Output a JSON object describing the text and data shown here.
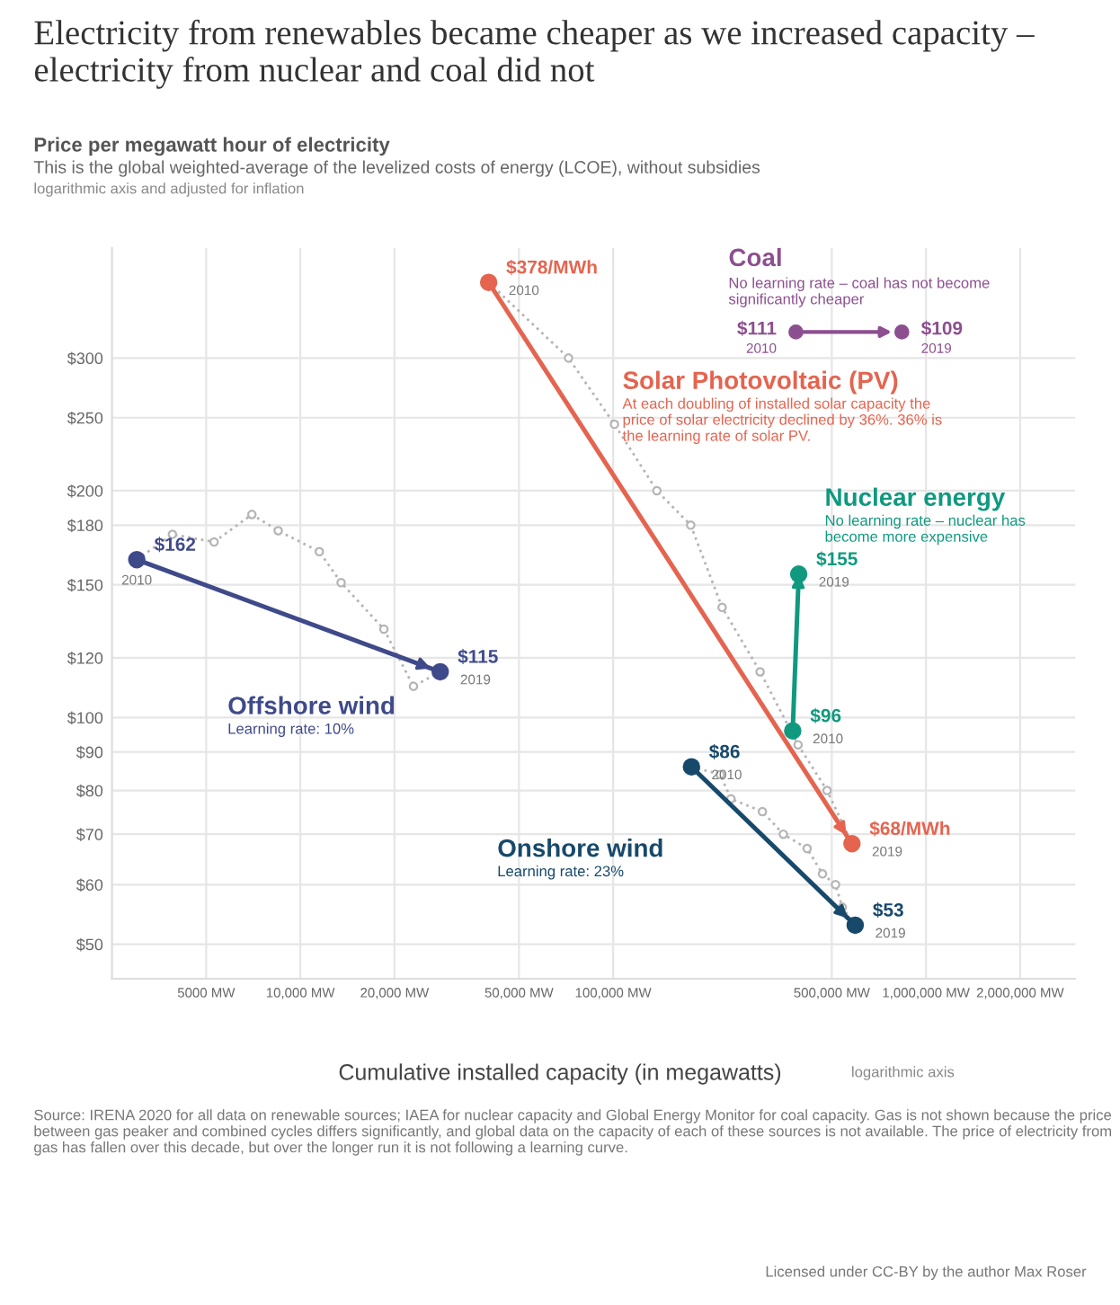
{
  "chart_data": {
    "type": "line",
    "title": "Electricity from renewables became cheaper as we increased capacity – electricity from nuclear and coal did not",
    "subtitle": "This is the global weighted-average of the levelized costs of energy (LCOE), without subsidies",
    "ylabel": "Price per megawatt hour of electricity",
    "xlabel": "Cumulative installed capacity (in megawatts)",
    "log": "xy",
    "grid": true,
    "xlim": [
      2500,
      3000000
    ],
    "ylim": [
      45,
      420
    ],
    "xticks": [
      {
        "value": 5000,
        "label": "5000 MW"
      },
      {
        "value": 10000,
        "label": "10,000 MW"
      },
      {
        "value": 20000,
        "label": "20,000 MW"
      },
      {
        "value": 50000,
        "label": "50,000 MW"
      },
      {
        "value": 100000,
        "label": "100,000 MW"
      },
      {
        "value": 500000,
        "label": "500,000 MW"
      },
      {
        "value": 1000000,
        "label": "1,000,000 MW"
      },
      {
        "value": 2000000,
        "label": "2,000,000 MW"
      }
    ],
    "yticks": [
      {
        "value": 50,
        "label": "$50"
      },
      {
        "value": 60,
        "label": "$60"
      },
      {
        "value": 70,
        "label": "$70"
      },
      {
        "value": 80,
        "label": "$80"
      },
      {
        "value": 90,
        "label": "$90"
      },
      {
        "value": 100,
        "label": "$100"
      },
      {
        "value": 120,
        "label": "$120"
      },
      {
        "value": 150,
        "label": "$150"
      },
      {
        "value": 180,
        "label": "$180"
      },
      {
        "value": 200,
        "label": "$200"
      },
      {
        "value": 250,
        "label": "$250"
      },
      {
        "value": 300,
        "label": "$300"
      }
    ],
    "series": [
      {
        "color": "#b5b5b5",
        "line_style": "dotted",
        "marker": "circle",
        "x": [
          3000,
          3900,
          5300,
          7000,
          8500,
          11500,
          13500,
          18500,
          23000,
          28000
        ],
        "values": [
          162,
          175,
          171,
          186,
          177,
          166,
          151,
          131,
          110,
          115
        ]
      },
      {
        "color": "#b5b5b5",
        "line_style": "dotted",
        "marker": "circle",
        "x": [
          40000,
          72000,
          101000,
          138000,
          177000,
          223000,
          295000,
          390000,
          483000,
          580000
        ],
        "values": [
          378,
          300,
          245,
          200,
          180,
          140,
          115,
          92,
          80,
          68
        ]
      },
      {
        "color": "#b5b5b5",
        "line_style": "dotted",
        "marker": "circle",
        "x": [
          178000,
          220000,
          238000,
          300000,
          350000,
          417000,
          467000,
          514000,
          540000,
          594000
        ],
        "values": [
          86,
          84,
          78,
          75,
          70,
          67,
          62,
          60,
          56,
          53
        ]
      },
      {
        "name": "Offshore wind",
        "color": "#3f4a8a",
        "line_style": "solid",
        "marker": "circle",
        "x": [
          3000,
          28000
        ],
        "values": [
          162,
          115
        ],
        "value_labels": [
          "$162",
          "$115"
        ]
      },
      {
        "name": "Solar Photovoltaic (PV)",
        "color": "#e5644f",
        "line_style": "solid",
        "marker": "circle",
        "x": [
          40000,
          580000
        ],
        "values": [
          378,
          68
        ],
        "value_labels": [
          "$378/MWh",
          "$68/MWh"
        ]
      },
      {
        "name": "Nuclear energy",
        "color": "#10997f",
        "line_style": "solid",
        "marker": "circle",
        "x": [
          375000,
          392000
        ],
        "values": [
          96,
          155
        ],
        "value_labels": [
          "$96",
          "$155"
        ]
      },
      {
        "name": "Onshore wind",
        "color": "#17496b",
        "line_style": "solid",
        "marker": "circle",
        "x": [
          178000,
          594000
        ],
        "values": [
          86,
          53
        ],
        "value_labels": [
          "$86",
          "$53"
        ]
      }
    ],
    "annotations": [
      "logarithmic axis and adjusted for inflation",
      "At each doubling of installed solar capacity the price of solar electricity declined by 36%. 36% is the learning rate of solar PV.",
      "No learning rate – nuclear has become more expensive",
      "Coal",
      "No learning rate – coal has not become significantly cheaper",
      "$111",
      "2010",
      "$109",
      "2019",
      "Learning rate: 23%",
      "Learning rate: 10%",
      "logarithmic axis",
      "Source: IRENA 2020 for all data on renewable sources; IAEA for nuclear capacity and Global Energy Monitor for coal capacity. Gas is not shown because the price between gas peaker and combined cycles differs significantly, and global data on the capacity of each of these sources is not available. The price of electricity from gas has fallen over this decade, but over the longer run it is not following a learning curve.",
      "Licensed under CC-BY by the author Max Roser",
      {
        "text": "2010",
        "x": 3000,
        "y": 162
      },
      {
        "text": "2019",
        "x": 28000,
        "y": 115
      },
      {
        "text": "2010",
        "x": 40000,
        "y": 378
      },
      {
        "text": "2019",
        "x": 580000,
        "y": 68
      },
      {
        "text": "2010",
        "x": 375000,
        "y": 96
      },
      {
        "text": "2019",
        "x": 392000,
        "y": 155
      },
      {
        "text": "2010",
        "x": 178000,
        "y": 86
      },
      {
        "text": "2019",
        "x": 594000,
        "y": 53
      }
    ]
  }
}
